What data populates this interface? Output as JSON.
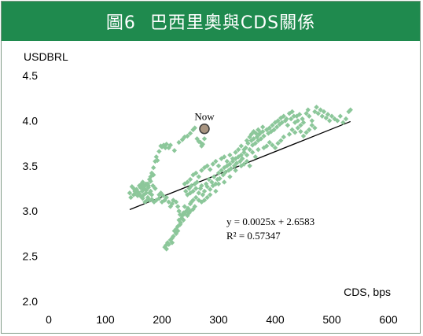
{
  "header": {
    "figure_label": "圖6",
    "title": "巴西里奧與CDS關係"
  },
  "chart_data": {
    "type": "scatter",
    "title": "圖6 巴西里奧與CDS關係",
    "xlabel": "CDS, bps",
    "ylabel": "USDBRL",
    "xlim": [
      0,
      600
    ],
    "ylim": [
      2.0,
      4.5
    ],
    "x_ticks": [
      0,
      100,
      200,
      300,
      400,
      500,
      600
    ],
    "y_ticks": [
      "2.0",
      "2.5",
      "3.0",
      "3.5",
      "4.0",
      "4.5"
    ],
    "grid": false,
    "marker_color": "#8cc79a",
    "trendline": {
      "equation": "y = 0.0025x + 2.6583",
      "r_squared": "R² = 0.57347",
      "slope": 0.0025,
      "intercept": 2.6583,
      "x_range": [
        143,
        533
      ],
      "color": "#000000"
    },
    "highlight": {
      "label": "Now",
      "x": 275,
      "y": 3.91,
      "fill": "#a89480",
      "stroke": "#3b3b3b"
    },
    "series": [
      {
        "points": [
          [
            143,
            3.2
          ],
          [
            145,
            3.15
          ],
          [
            147,
            3.27
          ],
          [
            150,
            3.25
          ],
          [
            152,
            3.22
          ],
          [
            155,
            3.24
          ],
          [
            158,
            3.21
          ],
          [
            160,
            3.28
          ],
          [
            162,
            3.26
          ],
          [
            164,
            3.3
          ],
          [
            166,
            3.32
          ],
          [
            168,
            3.25
          ],
          [
            170,
            3.28
          ],
          [
            172,
            3.23
          ],
          [
            175,
            3.3
          ],
          [
            178,
            3.35
          ],
          [
            180,
            3.38
          ],
          [
            182,
            3.42
          ],
          [
            185,
            3.48
          ],
          [
            188,
            3.55
          ],
          [
            190,
            3.6
          ],
          [
            192,
            3.56
          ],
          [
            195,
            3.66
          ],
          [
            198,
            3.72
          ],
          [
            200,
            3.71
          ],
          [
            203,
            3.73
          ],
          [
            206,
            3.7
          ],
          [
            208,
            3.74
          ],
          [
            212,
            3.7
          ],
          [
            215,
            3.73
          ],
          [
            222,
            3.67
          ],
          [
            230,
            3.76
          ],
          [
            236,
            3.79
          ],
          [
            240,
            3.82
          ],
          [
            245,
            3.83
          ],
          [
            250,
            3.86
          ],
          [
            255,
            3.9
          ],
          [
            258,
            3.92
          ],
          [
            262,
            3.8
          ],
          [
            265,
            3.77
          ],
          [
            268,
            3.76
          ],
          [
            272,
            3.74
          ],
          [
            275,
            3.8
          ],
          [
            270,
            3.72
          ],
          [
            185,
            3.4
          ],
          [
            180,
            3.33
          ],
          [
            176,
            3.26
          ],
          [
            172,
            3.2
          ],
          [
            168,
            3.18
          ],
          [
            165,
            3.22
          ],
          [
            175,
            3.15
          ],
          [
            178,
            3.12
          ],
          [
            182,
            3.13
          ],
          [
            186,
            3.1
          ],
          [
            190,
            3.12
          ],
          [
            195,
            3.14
          ],
          [
            200,
            3.1
          ],
          [
            205,
            3.12
          ],
          [
            208,
            3.15
          ],
          [
            212,
            3.1
          ],
          [
            215,
            3.05
          ],
          [
            218,
            3.08
          ],
          [
            220,
            3.12
          ],
          [
            225,
            3.1
          ],
          [
            228,
            3.05
          ],
          [
            230,
            3.0
          ],
          [
            232,
            2.96
          ],
          [
            235,
            2.92
          ],
          [
            238,
            2.98
          ],
          [
            240,
            3.05
          ],
          [
            205,
            2.6
          ],
          [
            207,
            2.62
          ],
          [
            208,
            2.58
          ],
          [
            210,
            2.65
          ],
          [
            212,
            2.63
          ],
          [
            215,
            2.68
          ],
          [
            218,
            2.7
          ],
          [
            222,
            2.78
          ],
          [
            225,
            2.8
          ],
          [
            228,
            2.83
          ],
          [
            230,
            2.9
          ],
          [
            233,
            2.87
          ],
          [
            236,
            2.95
          ],
          [
            240,
            2.97
          ],
          [
            243,
            3.0
          ],
          [
            246,
            3.03
          ],
          [
            248,
            2.98
          ],
          [
            250,
            3.08
          ],
          [
            252,
            3.1
          ],
          [
            255,
            3.12
          ],
          [
            242,
            3.22
          ],
          [
            245,
            3.18
          ],
          [
            248,
            3.25
          ],
          [
            250,
            3.2
          ],
          [
            252,
            3.28
          ],
          [
            255,
            3.22
          ],
          [
            258,
            3.3
          ],
          [
            260,
            3.25
          ],
          [
            262,
            3.32
          ],
          [
            265,
            3.2
          ],
          [
            268,
            3.25
          ],
          [
            270,
            3.28
          ],
          [
            272,
            3.18
          ],
          [
            275,
            3.22
          ],
          [
            278,
            3.3
          ],
          [
            280,
            3.27
          ],
          [
            283,
            3.35
          ],
          [
            285,
            3.24
          ],
          [
            288,
            3.32
          ],
          [
            290,
            3.28
          ],
          [
            292,
            3.38
          ],
          [
            295,
            3.3
          ],
          [
            298,
            3.35
          ],
          [
            300,
            3.42
          ],
          [
            302,
            3.36
          ],
          [
            305,
            3.45
          ],
          [
            308,
            3.4
          ],
          [
            310,
            3.48
          ],
          [
            312,
            3.43
          ],
          [
            315,
            3.5
          ],
          [
            318,
            3.45
          ],
          [
            320,
            3.52
          ],
          [
            322,
            3.47
          ],
          [
            325,
            3.55
          ],
          [
            328,
            3.5
          ],
          [
            330,
            3.58
          ],
          [
            332,
            3.53
          ],
          [
            335,
            3.6
          ],
          [
            338,
            3.55
          ],
          [
            340,
            3.62
          ],
          [
            342,
            3.58
          ],
          [
            345,
            3.65
          ],
          [
            348,
            3.7
          ],
          [
            350,
            3.62
          ],
          [
            352,
            3.75
          ],
          [
            355,
            3.68
          ],
          [
            358,
            3.78
          ],
          [
            360,
            3.73
          ],
          [
            362,
            3.8
          ],
          [
            365,
            3.75
          ],
          [
            368,
            3.82
          ],
          [
            370,
            3.78
          ],
          [
            372,
            3.85
          ],
          [
            375,
            3.8
          ],
          [
            378,
            3.88
          ],
          [
            380,
            3.83
          ],
          [
            385,
            3.9
          ],
          [
            388,
            3.86
          ],
          [
            390,
            3.92
          ],
          [
            393,
            3.88
          ],
          [
            395,
            3.95
          ],
          [
            398,
            3.9
          ],
          [
            400,
            3.98
          ],
          [
            403,
            3.93
          ],
          [
            405,
            4.0
          ],
          [
            408,
            3.96
          ],
          [
            410,
            4.03
          ],
          [
            412,
            3.98
          ],
          [
            415,
            4.05
          ],
          [
            418,
            4.0
          ],
          [
            420,
            4.02
          ],
          [
            422,
            3.95
          ],
          [
            425,
            4.08
          ],
          [
            428,
            4.02
          ],
          [
            430,
            4.1
          ],
          [
            433,
            4.05
          ],
          [
            435,
            3.98
          ],
          [
            438,
            4.05
          ],
          [
            440,
            4.0
          ],
          [
            443,
            4.07
          ],
          [
            445,
            3.95
          ],
          [
            448,
            4.02
          ],
          [
            450,
            3.98
          ],
          [
            455,
            4.08
          ],
          [
            458,
            4.12
          ],
          [
            460,
            4.05
          ],
          [
            465,
            4.0
          ],
          [
            470,
            4.1
          ],
          [
            473,
            4.15
          ],
          [
            476,
            4.08
          ],
          [
            480,
            4.12
          ],
          [
            483,
            4.05
          ],
          [
            486,
            4.1
          ],
          [
            490,
            4.03
          ],
          [
            493,
            4.07
          ],
          [
            496,
            4.0
          ],
          [
            500,
            4.05
          ],
          [
            505,
            4.02
          ],
          [
            510,
            4.0
          ],
          [
            515,
            4.05
          ],
          [
            520,
            3.98
          ],
          [
            525,
            4.02
          ],
          [
            530,
            4.1
          ],
          [
            533,
            4.12
          ],
          [
            425,
            3.85
          ],
          [
            430,
            3.9
          ],
          [
            435,
            3.87
          ],
          [
            440,
            3.92
          ],
          [
            445,
            3.88
          ],
          [
            450,
            3.83
          ],
          [
            455,
            3.87
          ],
          [
            460,
            3.9
          ],
          [
            465,
            3.95
          ],
          [
            470,
            3.92
          ],
          [
            380,
            3.7
          ],
          [
            385,
            3.72
          ],
          [
            390,
            3.76
          ],
          [
            395,
            3.73
          ],
          [
            400,
            3.7
          ],
          [
            405,
            3.75
          ],
          [
            410,
            3.78
          ],
          [
            415,
            3.82
          ],
          [
            360,
            3.65
          ],
          [
            365,
            3.6
          ],
          [
            370,
            3.68
          ],
          [
            340,
            3.5
          ],
          [
            345,
            3.52
          ],
          [
            350,
            3.55
          ],
          [
            355,
            3.5
          ],
          [
            330,
            3.45
          ],
          [
            320,
            3.38
          ],
          [
            310,
            3.32
          ],
          [
            300,
            3.3
          ],
          [
            295,
            3.22
          ],
          [
            285,
            3.18
          ],
          [
            280,
            3.15
          ],
          [
            275,
            3.12
          ],
          [
            270,
            3.1
          ],
          [
            265,
            3.12
          ],
          [
            260,
            3.15
          ],
          [
            258,
            3.05
          ],
          [
            255,
            3.02
          ],
          [
            250,
            3.0
          ],
          [
            245,
            2.95
          ],
          [
            238,
            2.9
          ],
          [
            232,
            2.85
          ],
          [
            228,
            2.78
          ],
          [
            225,
            2.75
          ],
          [
            220,
            2.72
          ],
          [
            218,
            2.65
          ],
          [
            195,
            3.18
          ],
          [
            198,
            3.2
          ],
          [
            202,
            3.17
          ],
          [
            188,
            3.25
          ],
          [
            184,
            3.28
          ],
          [
            180,
            3.22
          ],
          [
            176,
            3.28
          ],
          [
            172,
            3.3
          ],
          [
            168,
            3.28
          ],
          [
            164,
            3.26
          ],
          [
            150,
            3.18
          ],
          [
            153,
            3.2
          ],
          [
            157,
            3.17
          ],
          [
            160,
            3.19
          ],
          [
            163,
            3.16
          ],
          [
            166,
            3.14
          ],
          [
            170,
            3.1
          ],
          [
            174,
            3.12
          ],
          [
            178,
            3.2
          ],
          [
            182,
            3.18
          ],
          [
            240,
            3.3
          ],
          [
            245,
            3.32
          ],
          [
            250,
            3.35
          ],
          [
            255,
            3.4
          ],
          [
            260,
            3.42
          ],
          [
            265,
            3.38
          ],
          [
            270,
            3.45
          ],
          [
            275,
            3.48
          ],
          [
            280,
            3.5
          ],
          [
            285,
            3.46
          ],
          [
            290,
            3.52
          ],
          [
            295,
            3.55
          ],
          [
            300,
            3.5
          ],
          [
            305,
            3.58
          ],
          [
            310,
            3.6
          ],
          [
            315,
            3.55
          ],
          [
            320,
            3.62
          ],
          [
            325,
            3.58
          ],
          [
            330,
            3.65
          ],
          [
            335,
            3.68
          ],
          [
            340,
            3.72
          ],
          [
            345,
            3.68
          ],
          [
            350,
            3.78
          ],
          [
            355,
            3.82
          ],
          [
            358,
            3.85
          ],
          [
            362,
            3.88
          ],
          [
            366,
            3.86
          ],
          [
            370,
            3.9
          ],
          [
            374,
            3.87
          ],
          [
            378,
            3.93
          ]
        ]
      }
    ]
  }
}
